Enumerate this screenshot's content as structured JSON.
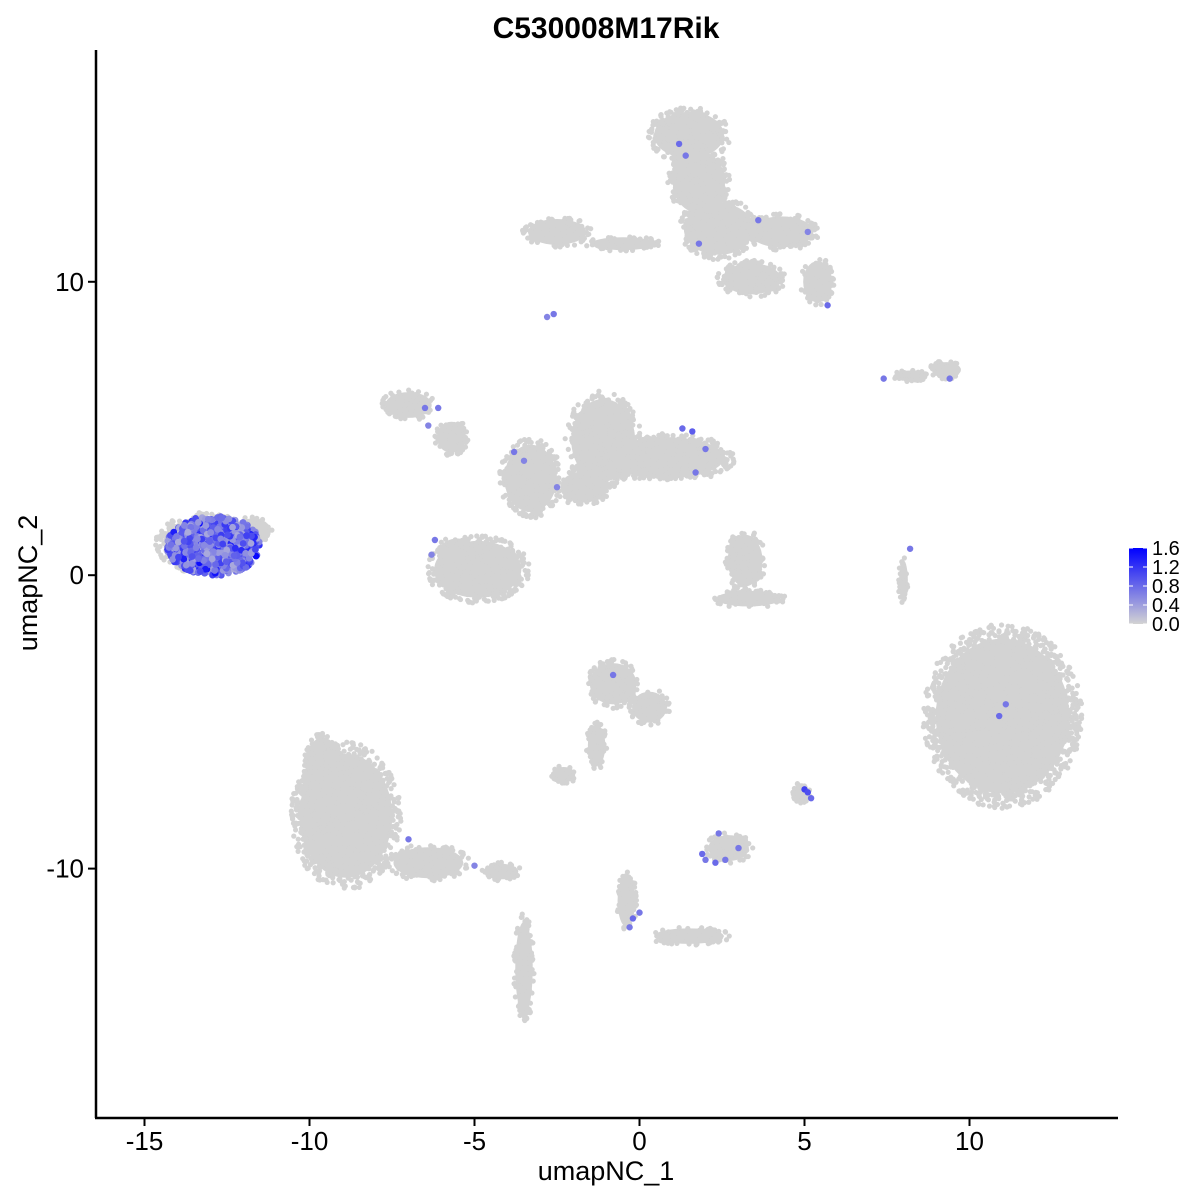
{
  "chart_data": {
    "type": "scatter",
    "title": "C530008M17Rik",
    "xlabel": "umapNC_1",
    "ylabel": "umapNC_2",
    "xlim": [
      -16.5,
      14.5
    ],
    "ylim": [
      -18.5,
      17.9
    ],
    "x_ticks": [
      -15,
      -10,
      -5,
      0,
      5,
      10
    ],
    "y_ticks": [
      -10,
      0,
      10
    ],
    "x_tick_labels": [
      "-15",
      "-10",
      "-5",
      "0",
      "5",
      "10"
    ],
    "y_tick_labels": [
      "-10",
      "0",
      "10"
    ],
    "grid": false,
    "legend": {
      "placement": "right",
      "type": "colorbar",
      "min": 0.0,
      "max": 1.6,
      "ticks": [
        0.0,
        0.4,
        0.8,
        1.2,
        1.6
      ],
      "tick_labels": [
        "0.0",
        "0.4",
        "0.8",
        "1.2",
        "1.6"
      ],
      "low_color": "#d3d3d3",
      "high_color": "#0000ff"
    },
    "clusters": [
      {
        "cx": 1.5,
        "cy": 15.0,
        "rx": 1.2,
        "ry": 0.9
      },
      {
        "cx": 1.8,
        "cy": 13.4,
        "rx": 0.9,
        "ry": 1.2
      },
      {
        "cx": 2.4,
        "cy": 11.8,
        "rx": 1.2,
        "ry": 1.0
      },
      {
        "cx": 4.3,
        "cy": 11.7,
        "rx": 1.1,
        "ry": 0.6
      },
      {
        "cx": 5.4,
        "cy": 10.0,
        "rx": 0.5,
        "ry": 0.8
      },
      {
        "cx": 3.4,
        "cy": 10.1,
        "rx": 1.0,
        "ry": 0.6
      },
      {
        "cx": -2.5,
        "cy": 11.7,
        "rx": 1.0,
        "ry": 0.5
      },
      {
        "cx": -0.5,
        "cy": 11.3,
        "rx": 1.1,
        "ry": 0.25
      },
      {
        "cx": 8.2,
        "cy": 6.8,
        "rx": 0.5,
        "ry": 0.2
      },
      {
        "cx": 9.3,
        "cy": 7.0,
        "rx": 0.5,
        "ry": 0.3
      },
      {
        "cx": -7.0,
        "cy": 5.8,
        "rx": 0.8,
        "ry": 0.5
      },
      {
        "cx": -5.7,
        "cy": 4.7,
        "rx": 0.5,
        "ry": 0.6
      },
      {
        "cx": -3.3,
        "cy": 3.3,
        "rx": 0.9,
        "ry": 1.3
      },
      {
        "cx": -1.1,
        "cy": 4.6,
        "rx": 1.1,
        "ry": 1.6
      },
      {
        "cx": 0.8,
        "cy": 4.0,
        "rx": 2.0,
        "ry": 0.8
      },
      {
        "cx": -1.7,
        "cy": 3.0,
        "rx": 0.8,
        "ry": 0.6
      },
      {
        "cx": -4.9,
        "cy": 0.2,
        "rx": 1.5,
        "ry": 1.1
      },
      {
        "cx": -5.5,
        "cy": 0.9,
        "rx": 0.6,
        "ry": 0.4
      },
      {
        "cx": 3.2,
        "cy": 0.5,
        "rx": 0.6,
        "ry": 1.0
      },
      {
        "cx": 3.3,
        "cy": -0.8,
        "rx": 1.1,
        "ry": 0.3
      },
      {
        "cx": 8.0,
        "cy": -0.2,
        "rx": 0.15,
        "ry": 0.8
      },
      {
        "cx": 11.0,
        "cy": -4.8,
        "rx": 2.3,
        "ry": 3.0
      },
      {
        "cx": -0.8,
        "cy": -3.7,
        "rx": 0.8,
        "ry": 0.8
      },
      {
        "cx": 0.3,
        "cy": -4.5,
        "rx": 0.6,
        "ry": 0.6
      },
      {
        "cx": -1.3,
        "cy": -5.8,
        "rx": 0.3,
        "ry": 0.8
      },
      {
        "cx": -2.3,
        "cy": -6.8,
        "rx": 0.4,
        "ry": 0.3
      },
      {
        "cx": 2.7,
        "cy": -9.3,
        "rx": 0.7,
        "ry": 0.5
      },
      {
        "cx": 4.9,
        "cy": -7.4,
        "rx": 0.25,
        "ry": 0.35
      },
      {
        "cx": -8.9,
        "cy": -8.2,
        "rx": 1.6,
        "ry": 2.4
      },
      {
        "cx": -9.6,
        "cy": -6.5,
        "rx": 0.6,
        "ry": 1.1
      },
      {
        "cx": -6.4,
        "cy": -9.8,
        "rx": 1.2,
        "ry": 0.6
      },
      {
        "cx": -4.2,
        "cy": -10.1,
        "rx": 0.6,
        "ry": 0.3
      },
      {
        "cx": -3.5,
        "cy": -13.4,
        "rx": 0.3,
        "ry": 1.8
      },
      {
        "cx": -0.4,
        "cy": -11.1,
        "rx": 0.3,
        "ry": 1.0
      },
      {
        "cx": 1.5,
        "cy": -12.3,
        "rx": 1.2,
        "ry": 0.3
      },
      {
        "cx": -13.2,
        "cy": 1.1,
        "rx": 1.4,
        "ry": 1.0
      },
      {
        "cx": -11.7,
        "cy": 1.5,
        "rx": 0.6,
        "ry": 0.5
      }
    ],
    "expressing_points": [
      {
        "x": 1.2,
        "y": 14.7,
        "v": 0.8
      },
      {
        "x": 1.4,
        "y": 14.3,
        "v": 0.7
      },
      {
        "x": 3.6,
        "y": 12.1,
        "v": 0.7
      },
      {
        "x": 5.1,
        "y": 11.7,
        "v": 0.6
      },
      {
        "x": 1.8,
        "y": 11.3,
        "v": 0.7
      },
      {
        "x": 5.7,
        "y": 9.2,
        "v": 0.8
      },
      {
        "x": -2.8,
        "y": 8.8,
        "v": 0.6
      },
      {
        "x": -2.6,
        "y": 8.9,
        "v": 0.7
      },
      {
        "x": 7.4,
        "y": 6.7,
        "v": 0.7
      },
      {
        "x": 9.4,
        "y": 6.7,
        "v": 0.7
      },
      {
        "x": -6.5,
        "y": 5.7,
        "v": 0.7
      },
      {
        "x": -6.1,
        "y": 5.7,
        "v": 0.7
      },
      {
        "x": -6.4,
        "y": 5.1,
        "v": 0.6
      },
      {
        "x": -3.8,
        "y": 4.2,
        "v": 0.7
      },
      {
        "x": -3.5,
        "y": 3.9,
        "v": 0.6
      },
      {
        "x": 1.3,
        "y": 5.0,
        "v": 0.8
      },
      {
        "x": 1.6,
        "y": 4.9,
        "v": 0.9
      },
      {
        "x": 2.0,
        "y": 4.3,
        "v": 0.7
      },
      {
        "x": 1.7,
        "y": 3.5,
        "v": 0.7
      },
      {
        "x": -2.5,
        "y": 3.0,
        "v": 0.6
      },
      {
        "x": -6.2,
        "y": 1.2,
        "v": 0.7
      },
      {
        "x": -6.3,
        "y": 0.7,
        "v": 0.6
      },
      {
        "x": 8.2,
        "y": 0.9,
        "v": 0.7
      },
      {
        "x": -0.8,
        "y": -3.4,
        "v": 0.7
      },
      {
        "x": 11.1,
        "y": -4.4,
        "v": 0.7
      },
      {
        "x": 10.9,
        "y": -4.8,
        "v": 0.8
      },
      {
        "x": 5.0,
        "y": -7.3,
        "v": 1.1
      },
      {
        "x": 5.1,
        "y": -7.4,
        "v": 1.0
      },
      {
        "x": 5.2,
        "y": -7.6,
        "v": 0.8
      },
      {
        "x": -7.0,
        "y": -9.0,
        "v": 0.7
      },
      {
        "x": -5.0,
        "y": -9.9,
        "v": 0.6
      },
      {
        "x": 2.4,
        "y": -8.8,
        "v": 0.7
      },
      {
        "x": 1.9,
        "y": -9.5,
        "v": 0.8
      },
      {
        "x": 2.0,
        "y": -9.7,
        "v": 0.7
      },
      {
        "x": 2.3,
        "y": -9.8,
        "v": 0.8
      },
      {
        "x": 2.6,
        "y": -9.7,
        "v": 0.7
      },
      {
        "x": 3.0,
        "y": -9.3,
        "v": 0.7
      },
      {
        "x": 0.0,
        "y": -11.5,
        "v": 0.7
      },
      {
        "x": -0.2,
        "y": -11.7,
        "v": 0.8
      },
      {
        "x": -0.3,
        "y": -12.0,
        "v": 0.7
      }
    ],
    "expressing_cluster": {
      "cx": -12.9,
      "cy": 1.0,
      "rx": 1.4,
      "ry": 1.0,
      "value_range": [
        0.3,
        1.6
      ]
    }
  }
}
